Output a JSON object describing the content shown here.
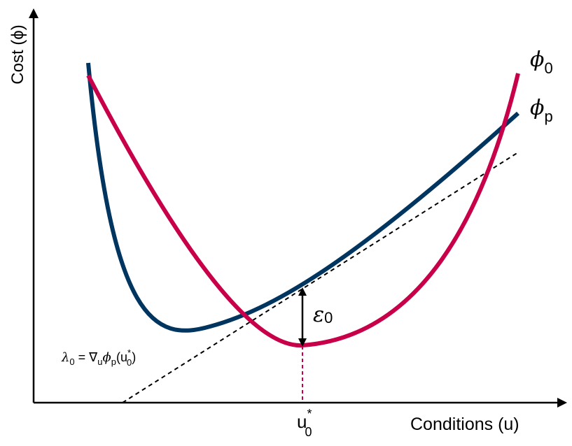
{
  "axes": {
    "y_label": "Cost (ϕ)",
    "x_label": "Conditions (u)"
  },
  "curves": {
    "phi_0": {
      "symbol": "ϕ",
      "subscript": "0",
      "color": "#c8004a"
    },
    "phi_p": {
      "symbol": "ϕ",
      "subscript": "p",
      "color": "#003560"
    }
  },
  "tangent": {
    "lhs": "λ",
    "lhs_sub": "0",
    "eq": " = ∇",
    "grad_sub": "u",
    "phi": "ϕ",
    "phi_sub": "p",
    "arg_open": "(u",
    "arg_sup": "*",
    "arg_sub": "0",
    "arg_close": ")"
  },
  "gap": {
    "symbol": "ε",
    "subscript": "0"
  },
  "optimum": {
    "symbol": "u",
    "sup": "*",
    "sub": "0"
  },
  "colors": {
    "axis": "#000000",
    "tangent": "#000000",
    "marker": "#c8004a"
  }
}
